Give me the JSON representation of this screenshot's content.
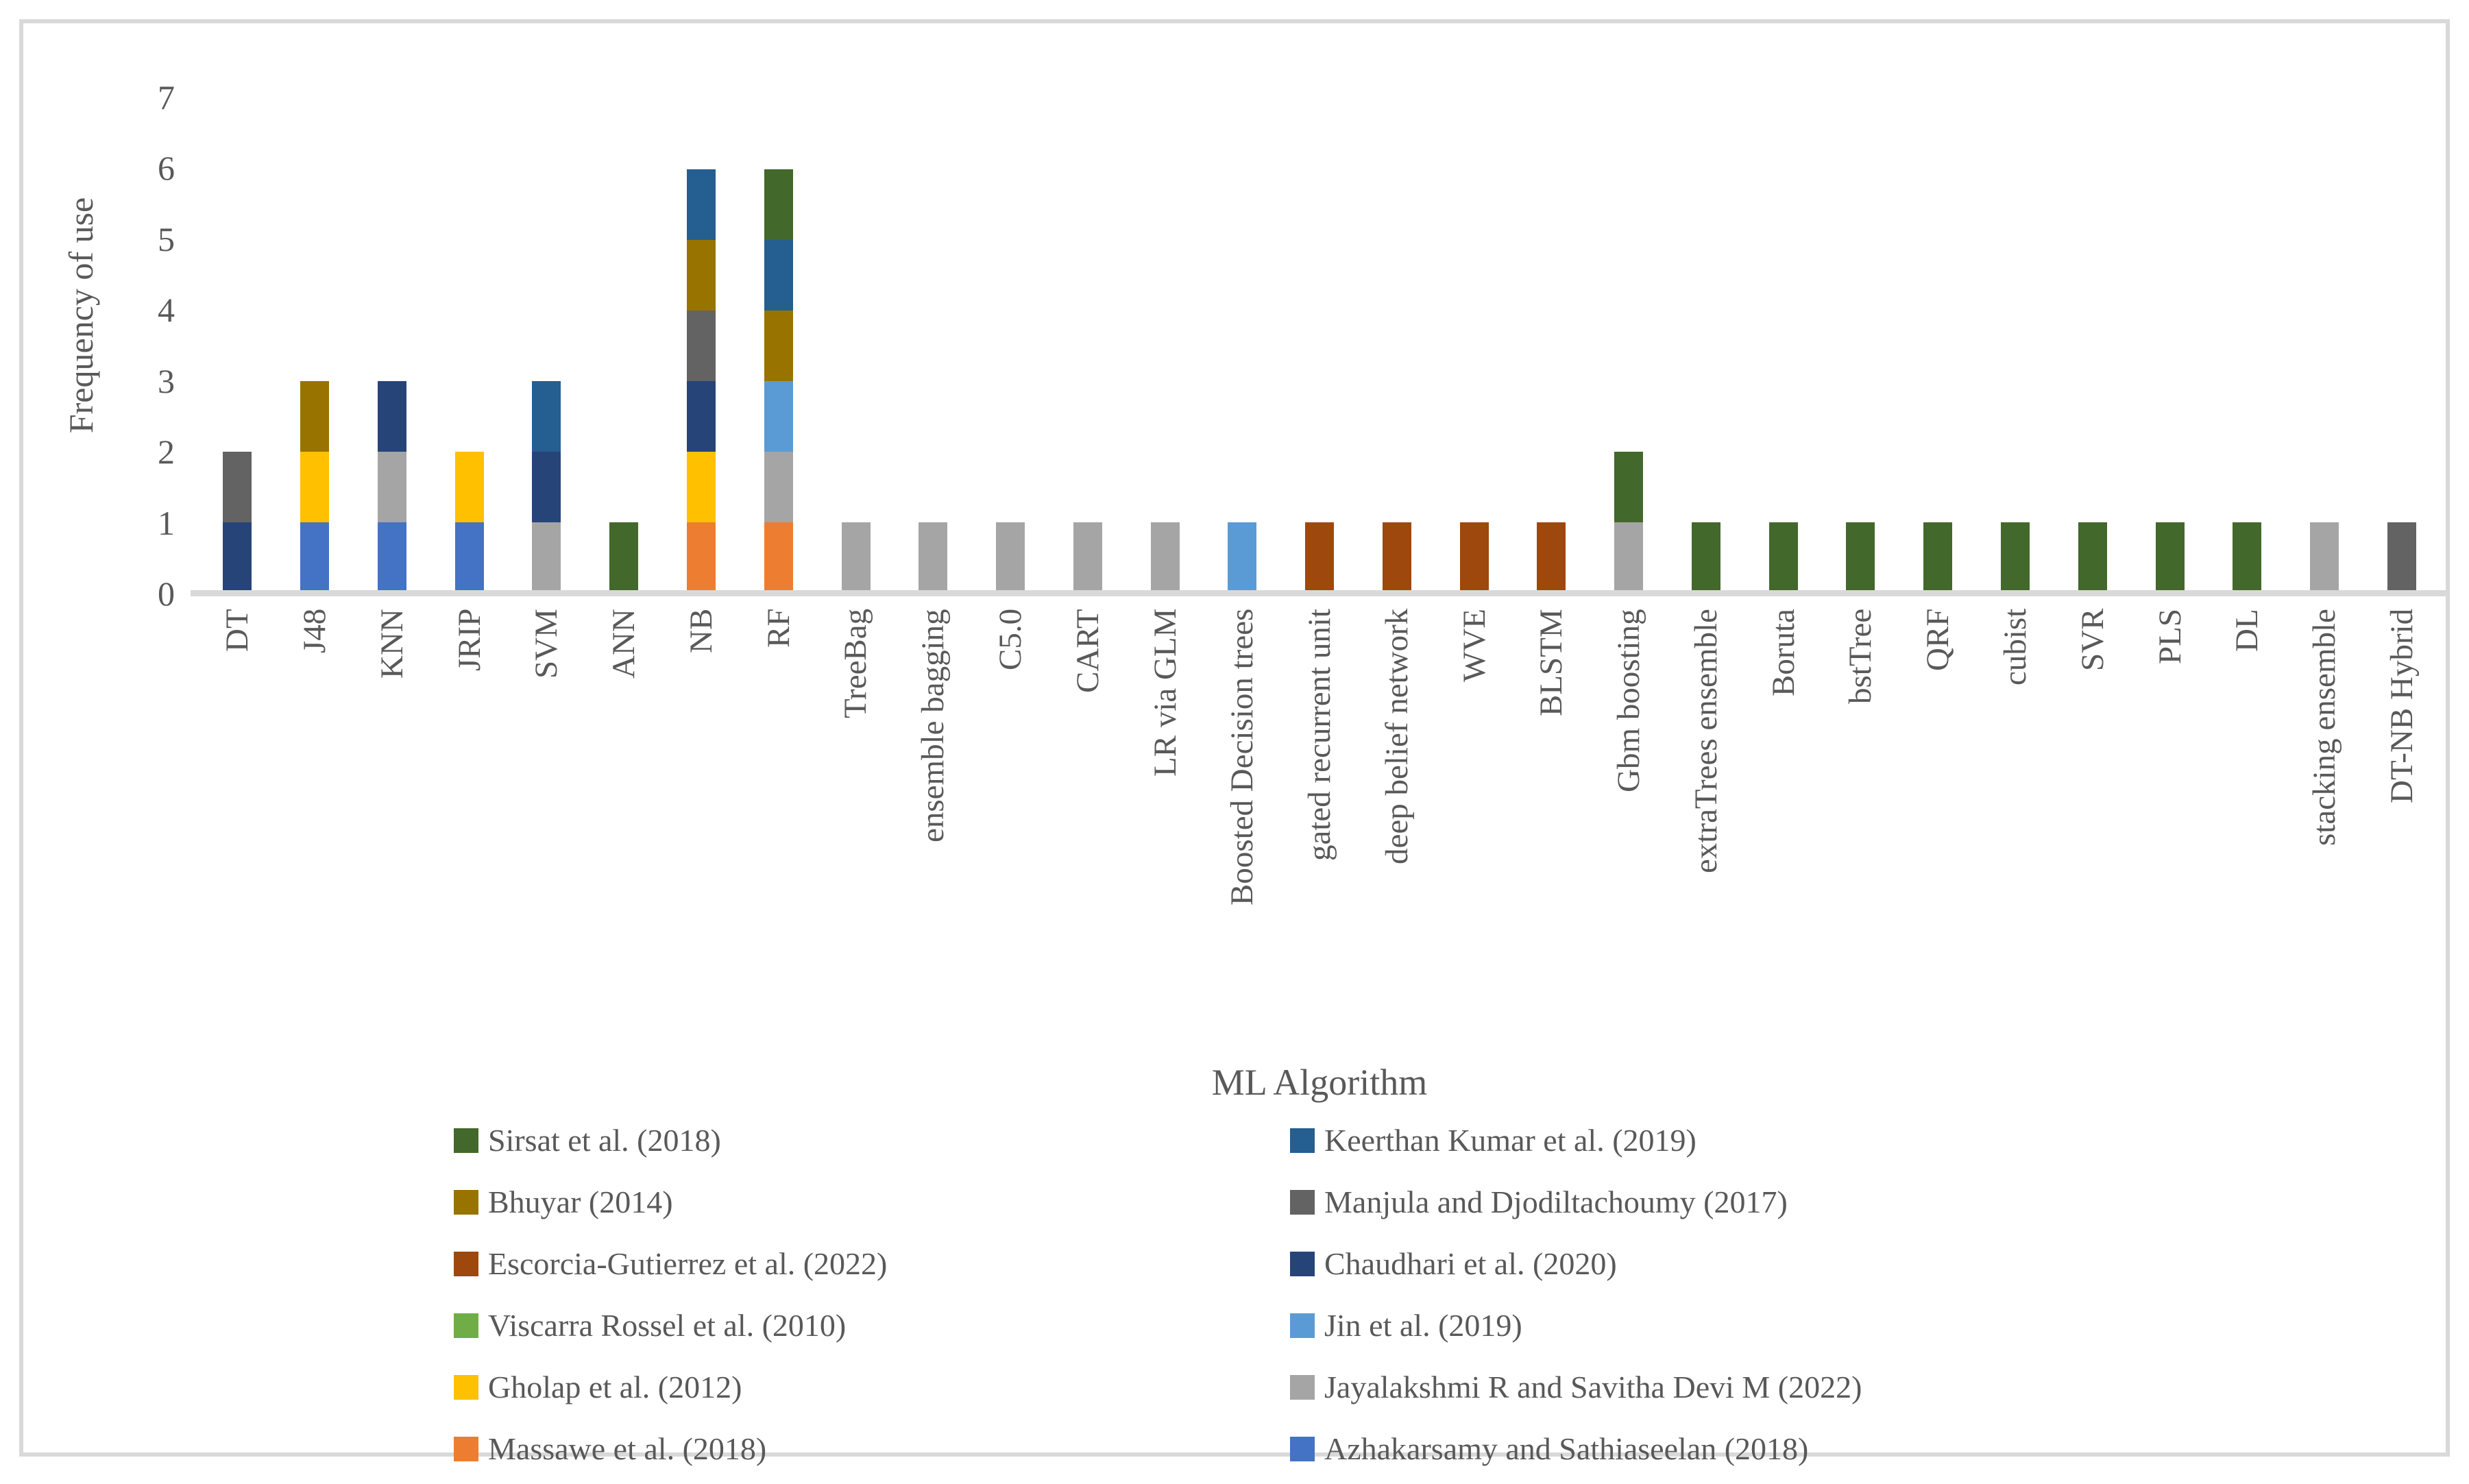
{
  "chart_data": {
    "type": "stacked-bar",
    "title": "",
    "xlabel": "ML Algorithm",
    "ylabel": "Frequency of use",
    "ylim": [
      0,
      7
    ],
    "y_ticks": [
      0,
      1,
      2,
      3,
      4,
      5,
      6,
      7
    ],
    "grid": false,
    "legend_position": "bottom, two columns",
    "categories": [
      "DT",
      "J48",
      "KNN",
      "JRIP",
      "SVM",
      "ANN",
      "NB",
      "RF",
      "TreeBag",
      "ensemble bagging",
      "C5.0",
      "CART",
      "LR via GLM",
      "Boosted Decision trees",
      "gated recurrent unit",
      "deep belief network",
      "WVE",
      "BLSTM",
      "Gbm boosting",
      "extraTrees ensemble",
      "Boruta",
      "bstTree",
      "QRF",
      "cubist",
      "SVR",
      "PLS",
      "DL",
      "stacking ensemble",
      "DT-NB Hybrid"
    ],
    "series": [
      {
        "name": "Azhakarsamy and Sathiaseelan (2018)",
        "color": "#4472C4",
        "values": [
          0,
          1,
          1,
          1,
          0,
          0,
          0,
          0,
          0,
          0,
          0,
          0,
          0,
          0,
          0,
          0,
          0,
          0,
          0,
          0,
          0,
          0,
          0,
          0,
          0,
          0,
          0,
          0,
          0
        ]
      },
      {
        "name": "Massawe et al. (2018)",
        "color": "#ED7D31",
        "values": [
          0,
          0,
          0,
          0,
          0,
          0,
          1,
          1,
          0,
          0,
          0,
          0,
          0,
          0,
          0,
          0,
          0,
          0,
          0,
          0,
          0,
          0,
          0,
          0,
          0,
          0,
          0,
          0,
          0
        ]
      },
      {
        "name": "Jayalakshmi R and Savitha Devi M (2022)",
        "color": "#A5A5A5",
        "values": [
          0,
          0,
          1,
          0,
          1,
          0,
          0,
          1,
          1,
          1,
          1,
          1,
          1,
          0,
          0,
          0,
          0,
          0,
          1,
          0,
          0,
          0,
          0,
          0,
          0,
          0,
          0,
          1,
          0
        ]
      },
      {
        "name": "Gholap et al. (2012)",
        "color": "#FFC000",
        "values": [
          0,
          1,
          0,
          1,
          0,
          0,
          1,
          0,
          0,
          0,
          0,
          0,
          0,
          0,
          0,
          0,
          0,
          0,
          0,
          0,
          0,
          0,
          0,
          0,
          0,
          0,
          0,
          0,
          0
        ]
      },
      {
        "name": "Jin et al. (2019)",
        "color": "#5B9BD5",
        "values": [
          0,
          0,
          0,
          0,
          0,
          0,
          0,
          1,
          0,
          0,
          0,
          0,
          0,
          1,
          0,
          0,
          0,
          0,
          0,
          0,
          0,
          0,
          0,
          0,
          0,
          0,
          0,
          0,
          0
        ]
      },
      {
        "name": "Viscarra Rossel et al. (2010)",
        "color": "#70AD47",
        "values": [
          0,
          0,
          0,
          0,
          0,
          0,
          0,
          0,
          0,
          0,
          0,
          0,
          0,
          0,
          0,
          0,
          0,
          0,
          0,
          0,
          0,
          0,
          0,
          0,
          0,
          0,
          0,
          0,
          0
        ]
      },
      {
        "name": "Chaudhari et al. (2020)",
        "color": "#264478",
        "values": [
          1,
          0,
          1,
          0,
          1,
          0,
          1,
          0,
          0,
          0,
          0,
          0,
          0,
          0,
          0,
          0,
          0,
          0,
          0,
          0,
          0,
          0,
          0,
          0,
          0,
          0,
          0,
          0,
          0
        ]
      },
      {
        "name": "Escorcia-Gutierrez et al. (2022)",
        "color": "#9E480E",
        "values": [
          0,
          0,
          0,
          0,
          0,
          0,
          0,
          0,
          0,
          0,
          0,
          0,
          0,
          0,
          1,
          1,
          1,
          1,
          0,
          0,
          0,
          0,
          0,
          0,
          0,
          0,
          0,
          0,
          0
        ]
      },
      {
        "name": "Manjula and Djodiltachoumy (2017)",
        "color": "#636363",
        "values": [
          1,
          0,
          0,
          0,
          0,
          0,
          1,
          0,
          0,
          0,
          0,
          0,
          0,
          0,
          0,
          0,
          0,
          0,
          0,
          0,
          0,
          0,
          0,
          0,
          0,
          0,
          0,
          0,
          1
        ]
      },
      {
        "name": "Bhuyar (2014)",
        "color": "#997300",
        "values": [
          0,
          1,
          0,
          0,
          0,
          0,
          1,
          1,
          0,
          0,
          0,
          0,
          0,
          0,
          0,
          0,
          0,
          0,
          0,
          0,
          0,
          0,
          0,
          0,
          0,
          0,
          0,
          0,
          0
        ]
      },
      {
        "name": "Keerthan Kumar et al. (2019)",
        "color": "#255E91",
        "values": [
          0,
          0,
          0,
          0,
          1,
          0,
          1,
          1,
          0,
          0,
          0,
          0,
          0,
          0,
          0,
          0,
          0,
          0,
          0,
          0,
          0,
          0,
          0,
          0,
          0,
          0,
          0,
          0,
          0
        ]
      },
      {
        "name": "Sirsat et al. (2018)",
        "color": "#43682B",
        "values": [
          0,
          0,
          0,
          0,
          0,
          1,
          0,
          1,
          0,
          0,
          0,
          0,
          0,
          0,
          0,
          0,
          0,
          0,
          1,
          1,
          1,
          1,
          1,
          1,
          1,
          1,
          1,
          0,
          0
        ]
      }
    ],
    "legend_entries": [
      {
        "label": "Sirsat et al. (2018)",
        "color": "#43682B"
      },
      {
        "label": "Keerthan Kumar et al. (2019)",
        "color": "#255E91"
      },
      {
        "label": "Bhuyar (2014)",
        "color": "#997300"
      },
      {
        "label": "Manjula and Djodiltachoumy (2017)",
        "color": "#636363"
      },
      {
        "label": "Escorcia-Gutierrez et al. (2022)",
        "color": "#9E480E"
      },
      {
        "label": "Chaudhari et al. (2020)",
        "color": "#264478"
      },
      {
        "label": "Viscarra Rossel et al. (2010)",
        "color": "#70AD47"
      },
      {
        "label": "Jin et al. (2019)",
        "color": "#5B9BD5"
      },
      {
        "label": "Gholap et al. (2012)",
        "color": "#FFC000"
      },
      {
        "label": "Jayalakshmi R and Savitha Devi M (2022)",
        "color": "#A5A5A5"
      },
      {
        "label": "Massawe et al. (2018)",
        "color": "#ED7D31"
      },
      {
        "label": "Azhakarsamy and Sathiaseelan (2018)",
        "color": "#4472C4"
      }
    ]
  },
  "colors": {
    "axis_text": "#595959",
    "axis_line": "#D9D9D9",
    "frame_border": "#D9D9D9",
    "background": "#FFFFFF"
  }
}
